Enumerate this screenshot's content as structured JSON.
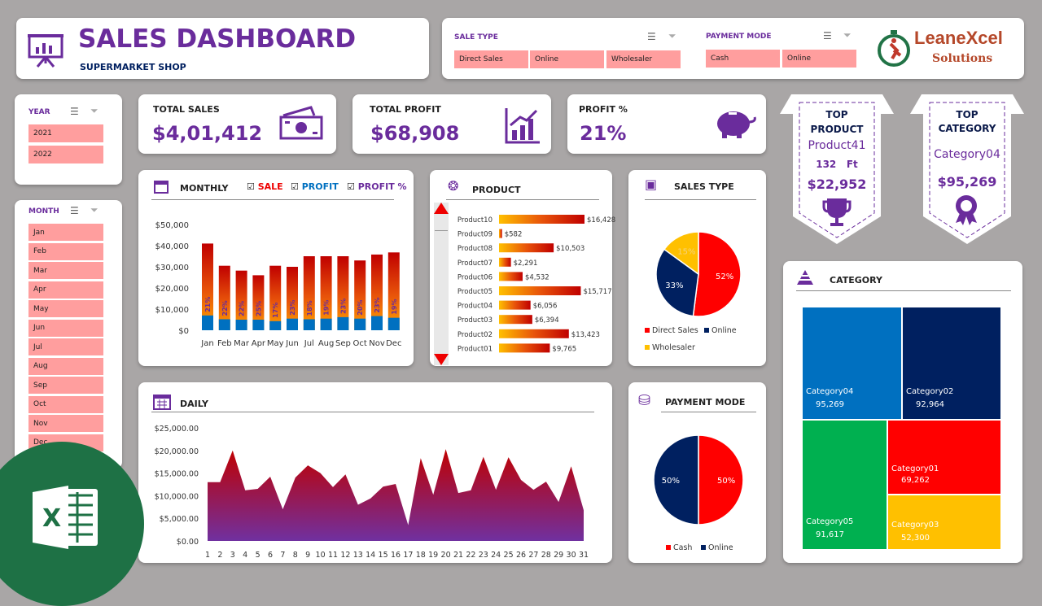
{
  "header": {
    "title": "SALES DASHBOARD",
    "subtitle": "SUPERMARKET SHOP"
  },
  "slicers": {
    "sale_type": {
      "label": "SALE TYPE",
      "items": [
        "Direct Sales",
        "Online",
        "Wholesaler"
      ]
    },
    "payment_mode": {
      "label": "PAYMENT MODE",
      "items": [
        "Cash",
        "Online"
      ]
    },
    "year": {
      "label": "YEAR",
      "items": [
        "2021",
        "2022"
      ]
    },
    "month": {
      "label": "MONTH",
      "items": [
        "Jan",
        "Feb",
        "Mar",
        "Apr",
        "May",
        "Jun",
        "Jul",
        "Aug",
        "Sep",
        "Oct",
        "Nov",
        "Dec"
      ]
    }
  },
  "logo": {
    "text": "LeaneXcel",
    "sub": "Solutions"
  },
  "kpis": {
    "total_sales": {
      "label": "TOTAL SALES",
      "value": "$4,01,412"
    },
    "total_profit": {
      "label": "TOTAL PROFIT",
      "value": "$68,908"
    },
    "profit_pct": {
      "label": "PROFIT %",
      "value": "21%"
    }
  },
  "top_product": {
    "l1": "TOP",
    "l2": "PRODUCT",
    "name": "Product41",
    "qty": "132",
    "unit": "Ft",
    "value": "$22,952"
  },
  "top_category": {
    "l1": "TOP",
    "l2": "CATEGORY",
    "name": "Category04",
    "value": "$95,269"
  },
  "colors": {
    "accent": "#6a2c9c",
    "red": "#ff0000",
    "navy": "#002060",
    "yellow": "#ffc000",
    "blue": "#0070c0",
    "green": "#00b050",
    "tile": "#ff9e9e"
  },
  "chart_data": [
    {
      "id": "monthly",
      "type": "bar",
      "title": "MONTHLY",
      "legend": [
        "SALE",
        "PROFIT",
        "PROFIT %"
      ],
      "categories": [
        "Jan",
        "Feb",
        "Mar",
        "Apr",
        "May",
        "Jun",
        "Jul",
        "Aug",
        "Sep",
        "Oct",
        "Nov",
        "Dec"
      ],
      "series": [
        {
          "name": "SALE",
          "values": [
            41000,
            30500,
            28200,
            26000,
            30500,
            30000,
            35000,
            35000,
            35000,
            33000,
            35800,
            36800
          ]
        },
        {
          "name": "PROFIT",
          "values": [
            7000,
            5200,
            5000,
            5000,
            4300,
            5500,
            5200,
            5500,
            6200,
            5500,
            6700,
            5900
          ]
        }
      ],
      "labels": [
        "21%",
        "22%",
        "22%",
        "25%",
        "17%",
        "23%",
        "18%",
        "19%",
        "23%",
        "20%",
        "23%",
        "19%"
      ],
      "yticks": [
        "$0",
        "$10,000",
        "$20,000",
        "$30,000",
        "$40,000",
        "$50,000"
      ],
      "ylim": [
        0,
        50000
      ]
    },
    {
      "id": "product",
      "type": "bar",
      "title": "PRODUCT",
      "categories": [
        "Product10",
        "Product09",
        "Product08",
        "Product07",
        "Product06",
        "Product05",
        "Product04",
        "Product03",
        "Product02",
        "Product01"
      ],
      "values": [
        16428,
        582,
        10503,
        2291,
        4532,
        15717,
        6056,
        6394,
        13423,
        9765
      ],
      "labels": [
        "$16,428",
        "$582",
        "$10,503",
        "$2,291",
        "$4,532",
        "$15,717",
        "$6,056",
        "$6,394",
        "$13,423",
        "$9,765"
      ]
    },
    {
      "id": "sales_type",
      "type": "pie",
      "title": "SALES TYPE",
      "categories": [
        "Direct Sales",
        "Online",
        "Wholesaler"
      ],
      "values": [
        52,
        33,
        15
      ],
      "labels": [
        "52%",
        "33%",
        "15%"
      ]
    },
    {
      "id": "daily",
      "type": "area",
      "title": "DAILY",
      "x": [
        "1",
        "2",
        "3",
        "4",
        "5",
        "6",
        "7",
        "8",
        "9",
        "10",
        "11",
        "12",
        "13",
        "14",
        "15",
        "16",
        "17",
        "18",
        "19",
        "20",
        "21",
        "22",
        "23",
        "24",
        "25",
        "26",
        "27",
        "28",
        "29",
        "30",
        "31"
      ],
      "values": [
        13000,
        13000,
        20000,
        11200,
        11500,
        14200,
        7000,
        14000,
        16700,
        15000,
        11900,
        14700,
        8000,
        9400,
        12000,
        12600,
        3500,
        18300,
        10200,
        20300,
        10600,
        11200,
        18600,
        11300,
        18500,
        13500,
        11300,
        13100,
        8600,
        16500,
        6800
      ],
      "yticks": [
        "$0.00",
        "$5,000.00",
        "$10,000.00",
        "$15,000.00",
        "$20,000.00",
        "$25,000.00"
      ],
      "ylim": [
        0,
        25000
      ]
    },
    {
      "id": "payment_mode",
      "type": "pie",
      "title": "PAYMENT MODE",
      "categories": [
        "Cash",
        "Online"
      ],
      "values": [
        50,
        50
      ],
      "labels": [
        "50%",
        "50%"
      ]
    },
    {
      "id": "category",
      "type": "heatmap",
      "title": "CATEGORY",
      "categories": [
        "Category04",
        "Category02",
        "Category05",
        "Category01",
        "Category03"
      ],
      "values": [
        95269,
        92964,
        91617,
        69262,
        52300
      ],
      "labels": [
        "95,269",
        "92,964",
        "91,617",
        "69,262",
        "52,300"
      ]
    }
  ]
}
